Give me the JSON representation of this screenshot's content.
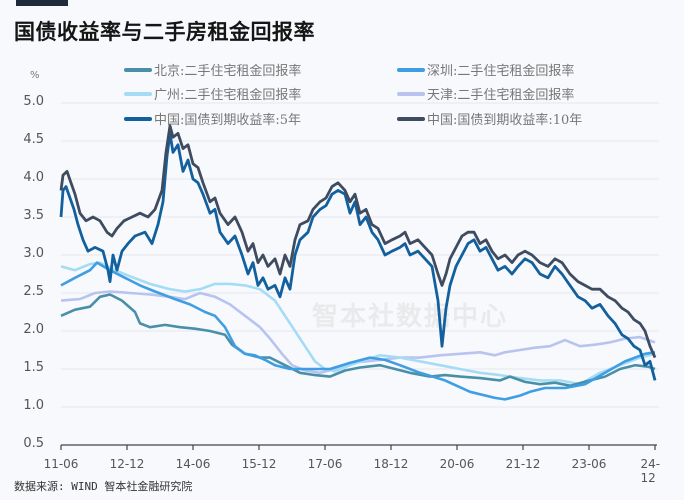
{
  "header": {
    "title": "国债收益率与二手房租金回报率"
  },
  "axis": {
    "unit": "%"
  },
  "watermark": "智本社数据中心",
  "source": "数据来源: WIND 智本社金融研究院",
  "legend": [
    {
      "label": "北京:二手住宅租金回报率",
      "color": "#4a8fa8"
    },
    {
      "label": "深圳:二手住宅租金回报率",
      "color": "#3f9ee3"
    },
    {
      "label": "广州:二手住宅租金回报率",
      "color": "#a5dcf5"
    },
    {
      "label": "天津:二手住宅租金回报率",
      "color": "#b8c4ef"
    },
    {
      "label": "中国:国债到期收益率:5年",
      "color": "#12609e"
    },
    {
      "label": "中国:国债到期收益率:10年",
      "color": "#3e4b60"
    }
  ],
  "yticks": [
    "5.0",
    "4.5",
    "4.0",
    "3.5",
    "3.0",
    "2.5",
    "2.0",
    "1.5",
    "1.0",
    "0.5"
  ],
  "xticks": [
    "11-06",
    "12-12",
    "14-06",
    "15-12",
    "17-06",
    "18-12",
    "20-06",
    "21-12",
    "23-06",
    "24-12"
  ],
  "chart_data": {
    "type": "line",
    "title": "国债收益率与二手房租金回报率",
    "xlabel": "",
    "ylabel": "%",
    "ylim": [
      0.5,
      5.0
    ],
    "grid": true,
    "legend_position": "top",
    "x": [
      "11-06",
      "12-12",
      "14-06",
      "15-12",
      "17-06",
      "18-12",
      "20-06",
      "21-12",
      "23-06",
      "24-12"
    ],
    "series": [
      {
        "name": "北京:二手住宅租金回报率",
        "values": [
          2.2,
          2.45,
          2.05,
          1.95,
          1.45,
          1.5,
          1.4,
          1.35,
          1.35,
          1.5
        ]
      },
      {
        "name": "深圳:二手住宅租金回报率",
        "values": [
          2.6,
          2.85,
          2.3,
          1.55,
          1.5,
          1.6,
          1.65,
          1.1,
          1.3,
          1.7
        ]
      },
      {
        "name": "广州:二手住宅租金回报率",
        "values": [
          2.85,
          2.8,
          2.45,
          2.6,
          1.5,
          1.65,
          1.6,
          1.4,
          1.35,
          1.65
        ]
      },
      {
        "name": "天津:二手住宅租金回报率",
        "values": [
          2.4,
          2.5,
          2.45,
          2.1,
          1.45,
          1.65,
          1.7,
          1.75,
          1.8,
          1.85
        ]
      },
      {
        "name": "中国:国债到期收益率:5年",
        "values": [
          3.6,
          3.05,
          4.4,
          2.9,
          3.85,
          3.2,
          2.4,
          2.9,
          2.55,
          1.4
        ]
      },
      {
        "name": "中国:国债到期收益率:10年",
        "values": [
          3.9,
          3.45,
          4.6,
          3.0,
          3.95,
          3.4,
          2.7,
          2.95,
          2.75,
          1.65
        ]
      }
    ]
  },
  "series_paths": {
    "beijing": [
      [
        61,
        2.2
      ],
      [
        75,
        2.28
      ],
      [
        90,
        2.32
      ],
      [
        100,
        2.45
      ],
      [
        110,
        2.48
      ],
      [
        122,
        2.4
      ],
      [
        135,
        2.25
      ],
      [
        140,
        2.1
      ],
      [
        150,
        2.05
      ],
      [
        165,
        2.08
      ],
      [
        180,
        2.05
      ],
      [
        195,
        2.03
      ],
      [
        210,
        2.0
      ],
      [
        225,
        1.95
      ],
      [
        232,
        1.82
      ],
      [
        245,
        1.7
      ],
      [
        260,
        1.65
      ],
      [
        270,
        1.65
      ],
      [
        285,
        1.55
      ],
      [
        300,
        1.45
      ],
      [
        315,
        1.42
      ],
      [
        330,
        1.4
      ],
      [
        345,
        1.48
      ],
      [
        360,
        1.52
      ],
      [
        380,
        1.55
      ],
      [
        395,
        1.5
      ],
      [
        410,
        1.45
      ],
      [
        430,
        1.4
      ],
      [
        445,
        1.42
      ],
      [
        460,
        1.4
      ],
      [
        480,
        1.38
      ],
      [
        500,
        1.35
      ],
      [
        510,
        1.4
      ],
      [
        525,
        1.33
      ],
      [
        540,
        1.3
      ],
      [
        555,
        1.32
      ],
      [
        570,
        1.28
      ],
      [
        590,
        1.35
      ],
      [
        605,
        1.4
      ],
      [
        620,
        1.5
      ],
      [
        635,
        1.55
      ],
      [
        648,
        1.53
      ],
      [
        655,
        1.5
      ]
    ],
    "shenzhen": [
      [
        61,
        2.6
      ],
      [
        75,
        2.7
      ],
      [
        90,
        2.8
      ],
      [
        97,
        2.9
      ],
      [
        110,
        2.8
      ],
      [
        125,
        2.7
      ],
      [
        140,
        2.6
      ],
      [
        155,
        2.52
      ],
      [
        175,
        2.42
      ],
      [
        190,
        2.35
      ],
      [
        205,
        2.25
      ],
      [
        215,
        2.2
      ],
      [
        225,
        2.05
      ],
      [
        235,
        1.8
      ],
      [
        245,
        1.7
      ],
      [
        255,
        1.68
      ],
      [
        265,
        1.62
      ],
      [
        275,
        1.55
      ],
      [
        290,
        1.5
      ],
      [
        310,
        1.5
      ],
      [
        330,
        1.5
      ],
      [
        350,
        1.58
      ],
      [
        370,
        1.65
      ],
      [
        385,
        1.62
      ],
      [
        400,
        1.55
      ],
      [
        420,
        1.45
      ],
      [
        445,
        1.35
      ],
      [
        470,
        1.2
      ],
      [
        495,
        1.12
      ],
      [
        505,
        1.1
      ],
      [
        520,
        1.15
      ],
      [
        530,
        1.2
      ],
      [
        545,
        1.25
      ],
      [
        565,
        1.25
      ],
      [
        585,
        1.3
      ],
      [
        605,
        1.45
      ],
      [
        625,
        1.6
      ],
      [
        645,
        1.7
      ],
      [
        655,
        1.72
      ]
    ],
    "guangzhou": [
      [
        61,
        2.85
      ],
      [
        75,
        2.8
      ],
      [
        90,
        2.88
      ],
      [
        100,
        2.9
      ],
      [
        115,
        2.8
      ],
      [
        130,
        2.72
      ],
      [
        150,
        2.62
      ],
      [
        170,
        2.55
      ],
      [
        185,
        2.52
      ],
      [
        200,
        2.55
      ],
      [
        215,
        2.62
      ],
      [
        230,
        2.62
      ],
      [
        245,
        2.6
      ],
      [
        260,
        2.55
      ],
      [
        275,
        2.4
      ],
      [
        285,
        2.2
      ],
      [
        295,
        2.0
      ],
      [
        305,
        1.8
      ],
      [
        315,
        1.6
      ],
      [
        325,
        1.5
      ],
      [
        335,
        1.47
      ],
      [
        350,
        1.55
      ],
      [
        365,
        1.62
      ],
      [
        380,
        1.68
      ],
      [
        400,
        1.65
      ],
      [
        420,
        1.6
      ],
      [
        440,
        1.55
      ],
      [
        460,
        1.5
      ],
      [
        480,
        1.45
      ],
      [
        500,
        1.42
      ],
      [
        520,
        1.38
      ],
      [
        540,
        1.35
      ],
      [
        560,
        1.35
      ],
      [
        580,
        1.3
      ],
      [
        600,
        1.45
      ],
      [
        620,
        1.55
      ],
      [
        640,
        1.65
      ],
      [
        655,
        1.7
      ]
    ],
    "tianjin": [
      [
        61,
        2.4
      ],
      [
        80,
        2.42
      ],
      [
        95,
        2.5
      ],
      [
        110,
        2.52
      ],
      [
        130,
        2.5
      ],
      [
        150,
        2.48
      ],
      [
        170,
        2.45
      ],
      [
        185,
        2.42
      ],
      [
        200,
        2.5
      ],
      [
        215,
        2.45
      ],
      [
        230,
        2.35
      ],
      [
        245,
        2.2
      ],
      [
        260,
        2.05
      ],
      [
        270,
        1.9
      ],
      [
        282,
        1.7
      ],
      [
        292,
        1.55
      ],
      [
        305,
        1.48
      ],
      [
        320,
        1.45
      ],
      [
        335,
        1.5
      ],
      [
        350,
        1.58
      ],
      [
        365,
        1.6
      ],
      [
        380,
        1.62
      ],
      [
        400,
        1.65
      ],
      [
        420,
        1.65
      ],
      [
        440,
        1.68
      ],
      [
        460,
        1.7
      ],
      [
        480,
        1.72
      ],
      [
        495,
        1.68
      ],
      [
        505,
        1.72
      ],
      [
        520,
        1.75
      ],
      [
        535,
        1.78
      ],
      [
        550,
        1.8
      ],
      [
        565,
        1.88
      ],
      [
        580,
        1.8
      ],
      [
        595,
        1.82
      ],
      [
        610,
        1.85
      ],
      [
        625,
        1.9
      ],
      [
        640,
        1.92
      ],
      [
        655,
        1.85
      ]
    ],
    "cn5y": [
      [
        61,
        3.5
      ],
      [
        63,
        3.85
      ],
      [
        66,
        3.9
      ],
      [
        70,
        3.75
      ],
      [
        74,
        3.6
      ],
      [
        78,
        3.4
      ],
      [
        83,
        3.2
      ],
      [
        88,
        3.05
      ],
      [
        95,
        3.1
      ],
      [
        103,
        3.05
      ],
      [
        108,
        2.8
      ],
      [
        110,
        2.65
      ],
      [
        113,
        3.0
      ],
      [
        117,
        2.8
      ],
      [
        122,
        3.05
      ],
      [
        128,
        3.15
      ],
      [
        135,
        3.25
      ],
      [
        145,
        3.3
      ],
      [
        152,
        3.15
      ],
      [
        158,
        3.4
      ],
      [
        163,
        3.7
      ],
      [
        167,
        4.3
      ],
      [
        170,
        4.6
      ],
      [
        173,
        4.35
      ],
      [
        178,
        4.45
      ],
      [
        183,
        4.1
      ],
      [
        188,
        4.25
      ],
      [
        193,
        4.0
      ],
      [
        198,
        3.95
      ],
      [
        203,
        3.8
      ],
      [
        210,
        3.55
      ],
      [
        215,
        3.6
      ],
      [
        220,
        3.3
      ],
      [
        228,
        3.15
      ],
      [
        235,
        3.25
      ],
      [
        242,
        3.0
      ],
      [
        248,
        2.75
      ],
      [
        253,
        2.9
      ],
      [
        258,
        2.6
      ],
      [
        263,
        2.7
      ],
      [
        268,
        2.55
      ],
      [
        275,
        2.6
      ],
      [
        280,
        2.45
      ],
      [
        285,
        2.7
      ],
      [
        290,
        2.55
      ],
      [
        295,
        3.0
      ],
      [
        300,
        3.2
      ],
      [
        308,
        3.3
      ],
      [
        313,
        3.5
      ],
      [
        320,
        3.6
      ],
      [
        326,
        3.65
      ],
      [
        332,
        3.8
      ],
      [
        338,
        3.85
      ],
      [
        345,
        3.8
      ],
      [
        350,
        3.55
      ],
      [
        355,
        3.7
      ],
      [
        360,
        3.4
      ],
      [
        366,
        3.5
      ],
      [
        372,
        3.3
      ],
      [
        378,
        3.2
      ],
      [
        385,
        3.0
      ],
      [
        392,
        3.05
      ],
      [
        400,
        3.1
      ],
      [
        405,
        3.15
      ],
      [
        410,
        3.0
      ],
      [
        418,
        3.05
      ],
      [
        425,
        2.95
      ],
      [
        432,
        2.85
      ],
      [
        438,
        2.4
      ],
      [
        442,
        1.8
      ],
      [
        446,
        2.3
      ],
      [
        450,
        2.6
      ],
      [
        456,
        2.85
      ],
      [
        462,
        3.0
      ],
      [
        468,
        3.15
      ],
      [
        474,
        3.2
      ],
      [
        480,
        3.05
      ],
      [
        486,
        3.1
      ],
      [
        492,
        2.95
      ],
      [
        498,
        2.8
      ],
      [
        505,
        2.85
      ],
      [
        512,
        2.75
      ],
      [
        518,
        2.85
      ],
      [
        525,
        2.95
      ],
      [
        532,
        2.9
      ],
      [
        540,
        2.75
      ],
      [
        548,
        2.7
      ],
      [
        555,
        2.85
      ],
      [
        562,
        2.75
      ],
      [
        570,
        2.6
      ],
      [
        578,
        2.45
      ],
      [
        585,
        2.4
      ],
      [
        592,
        2.3
      ],
      [
        600,
        2.35
      ],
      [
        608,
        2.2
      ],
      [
        615,
        2.1
      ],
      [
        622,
        1.95
      ],
      [
        628,
        1.9
      ],
      [
        634,
        1.8
      ],
      [
        640,
        1.75
      ],
      [
        645,
        1.55
      ],
      [
        650,
        1.6
      ],
      [
        655,
        1.35
      ]
    ],
    "cn10y": [
      [
        61,
        3.85
      ],
      [
        63,
        4.05
      ],
      [
        67,
        4.1
      ],
      [
        71,
        3.95
      ],
      [
        75,
        3.8
      ],
      [
        80,
        3.55
      ],
      [
        86,
        3.45
      ],
      [
        93,
        3.5
      ],
      [
        100,
        3.45
      ],
      [
        107,
        3.3
      ],
      [
        112,
        3.25
      ],
      [
        117,
        3.35
      ],
      [
        124,
        3.45
      ],
      [
        132,
        3.5
      ],
      [
        140,
        3.55
      ],
      [
        148,
        3.5
      ],
      [
        155,
        3.6
      ],
      [
        162,
        3.85
      ],
      [
        166,
        4.35
      ],
      [
        170,
        4.7
      ],
      [
        173,
        4.55
      ],
      [
        178,
        4.6
      ],
      [
        183,
        4.4
      ],
      [
        188,
        4.45
      ],
      [
        193,
        4.2
      ],
      [
        198,
        4.15
      ],
      [
        203,
        3.95
      ],
      [
        210,
        3.7
      ],
      [
        215,
        3.75
      ],
      [
        220,
        3.55
      ],
      [
        228,
        3.4
      ],
      [
        235,
        3.5
      ],
      [
        242,
        3.3
      ],
      [
        248,
        3.05
      ],
      [
        253,
        3.15
      ],
      [
        258,
        2.9
      ],
      [
        263,
        3.0
      ],
      [
        268,
        2.85
      ],
      [
        275,
        2.95
      ],
      [
        280,
        2.75
      ],
      [
        285,
        3.0
      ],
      [
        290,
        2.85
      ],
      [
        295,
        3.2
      ],
      [
        300,
        3.4
      ],
      [
        308,
        3.45
      ],
      [
        313,
        3.6
      ],
      [
        320,
        3.7
      ],
      [
        326,
        3.75
      ],
      [
        332,
        3.9
      ],
      [
        338,
        3.95
      ],
      [
        345,
        3.85
      ],
      [
        350,
        3.7
      ],
      [
        355,
        3.8
      ],
      [
        360,
        3.55
      ],
      [
        366,
        3.6
      ],
      [
        372,
        3.4
      ],
      [
        378,
        3.35
      ],
      [
        385,
        3.15
      ],
      [
        392,
        3.2
      ],
      [
        400,
        3.25
      ],
      [
        405,
        3.3
      ],
      [
        410,
        3.15
      ],
      [
        418,
        3.2
      ],
      [
        425,
        3.1
      ],
      [
        432,
        3.0
      ],
      [
        438,
        2.75
      ],
      [
        442,
        2.6
      ],
      [
        446,
        2.75
      ],
      [
        450,
        2.95
      ],
      [
        456,
        3.1
      ],
      [
        462,
        3.25
      ],
      [
        468,
        3.3
      ],
      [
        474,
        3.3
      ],
      [
        480,
        3.15
      ],
      [
        486,
        3.2
      ],
      [
        492,
        3.05
      ],
      [
        498,
        2.95
      ],
      [
        505,
        3.0
      ],
      [
        512,
        2.9
      ],
      [
        518,
        3.0
      ],
      [
        525,
        3.05
      ],
      [
        532,
        3.0
      ],
      [
        540,
        2.9
      ],
      [
        548,
        2.85
      ],
      [
        555,
        2.95
      ],
      [
        562,
        2.9
      ],
      [
        570,
        2.75
      ],
      [
        578,
        2.65
      ],
      [
        585,
        2.6
      ],
      [
        592,
        2.55
      ],
      [
        600,
        2.55
      ],
      [
        608,
        2.45
      ],
      [
        615,
        2.4
      ],
      [
        622,
        2.3
      ],
      [
        628,
        2.25
      ],
      [
        634,
        2.15
      ],
      [
        640,
        2.1
      ],
      [
        645,
        2.0
      ],
      [
        650,
        1.8
      ],
      [
        655,
        1.65
      ]
    ]
  }
}
